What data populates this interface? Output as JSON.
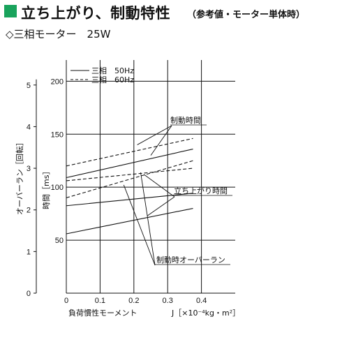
{
  "header": {
    "title": "立ち上がり、制動特性",
    "subtitle": "（参考値・モーター単体時）",
    "accent_color": "#19a35c"
  },
  "model_label": "◇三相モーター　25W",
  "chart_data": {
    "type": "line",
    "xlabel": "負荷慣性モーメント",
    "xunit": "J［×10⁻⁴kg・m²］",
    "xlim": [
      0,
      0.5
    ],
    "xticks": [
      "0",
      "0.1",
      "0.2",
      "0.3",
      "0.4"
    ],
    "xtick_values": [
      0,
      0.1,
      0.2,
      0.3,
      0.4
    ],
    "y_time": {
      "label": "時間［ms］",
      "lim": [
        0,
        220
      ],
      "ticks": [
        50,
        100,
        150,
        200
      ]
    },
    "y_overrun": {
      "label": "オーバーラン［回転］",
      "lim": [
        0,
        5.6
      ],
      "ticks": [
        0,
        1,
        2,
        3,
        4,
        5
      ]
    },
    "grid": true,
    "legend": [
      {
        "label": "三相　50Hz",
        "style": "solid"
      },
      {
        "label": "三相　60Hz",
        "style": "dashed"
      }
    ],
    "series": [
      {
        "name": "三相　50Hz",
        "group": "制動時間",
        "axis": "time",
        "style": "solid",
        "x": [
          0,
          0.375
        ],
        "y": [
          109,
          136
        ]
      },
      {
        "name": "三相　60Hz",
        "group": "制動時間",
        "axis": "time",
        "style": "dashed",
        "x": [
          0,
          0.375
        ],
        "y": [
          120,
          146
        ]
      },
      {
        "name": "三相　50Hz",
        "group": "立ち上がり時間",
        "axis": "time",
        "style": "solid",
        "x": [
          0,
          0.375
        ],
        "y": [
          56,
          80
        ]
      },
      {
        "name": "三相　60Hz",
        "group": "立ち上がり時間",
        "axis": "time",
        "style": "dashed",
        "x": [
          0,
          0.375
        ],
        "y": [
          90,
          125
        ]
      },
      {
        "name": "三相　50Hz",
        "group": "制動時オーバーラン",
        "axis": "overrun",
        "style": "solid",
        "x": [
          0,
          0.375
        ],
        "y": [
          2.1,
          2.4
        ]
      },
      {
        "name": "三相　60Hz",
        "group": "制動時オーバーラン",
        "axis": "overrun",
        "style": "dashed",
        "x": [
          0,
          0.375
        ],
        "y": [
          2.7,
          3.0
        ]
      }
    ],
    "annotations": [
      {
        "text": "制動時間",
        "targets": [
          [
            0.21,
            140
          ],
          [
            0.25,
            130
          ]
        ]
      },
      {
        "text": "立ち上がり時間",
        "targets": [
          [
            0.23,
            112
          ],
          [
            0.24,
            73
          ]
        ]
      },
      {
        "text": "制動時オーバーラン",
        "targets": [
          [
            0.17,
            2.6
          ],
          [
            0.22,
            2.9
          ]
        ]
      }
    ]
  }
}
